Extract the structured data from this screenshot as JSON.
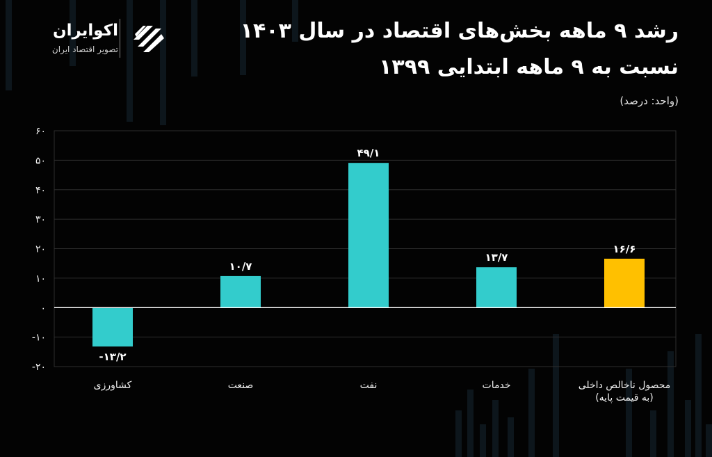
{
  "header": {
    "title_line1": "رشد ۹ ماهه بخش‌های اقتصاد در سال ۱۴۰۳",
    "title_line2": "نسبت به ۹ ماهه ابتدایی ۱۳۹۹",
    "unit_note": "(واحد: درصد)"
  },
  "brand": {
    "name": "اکوایران",
    "tagline": "تصویر اقتصاد ایران",
    "logo_icon": "ecoiran-stripes-logo"
  },
  "colors": {
    "background": "#030303",
    "sector_bar": "#33cccc",
    "gdp_bar": "#ffc000",
    "grid": "#2e2e2e",
    "zero_line": "#ffffff",
    "text": "#f2f2f2"
  },
  "chart_data": {
    "type": "bar",
    "categories": [
      "کشاورزی",
      "صنعت",
      "نفت",
      "خدمات",
      "محصول ناخالص داخلی (به قیمت پایه)"
    ],
    "category_lines": [
      [
        "کشاورزی"
      ],
      [
        "صنعت"
      ],
      [
        "نفت"
      ],
      [
        "خدمات"
      ],
      [
        "محصول ناخالص داخلی",
        "(به قیمت پایه)"
      ]
    ],
    "values": [
      -13.2,
      10.7,
      49.1,
      13.7,
      16.6
    ],
    "value_labels": [
      "-۱۳/۲",
      "۱۰/۷",
      "۴۹/۱",
      "۱۳/۷",
      "۱۶/۶"
    ],
    "highlight_index": 4,
    "ylim": [
      -20,
      60
    ],
    "yticks": [
      -20,
      -10,
      0,
      10,
      20,
      30,
      40,
      50,
      60
    ],
    "ytick_labels": [
      "-۲۰",
      "-۱۰",
      "۰",
      "۱۰",
      "۲۰",
      "۳۰",
      "۴۰",
      "۵۰",
      "۶۰"
    ],
    "grid": true,
    "legend": "none",
    "xlabel": "",
    "ylabel": ""
  }
}
